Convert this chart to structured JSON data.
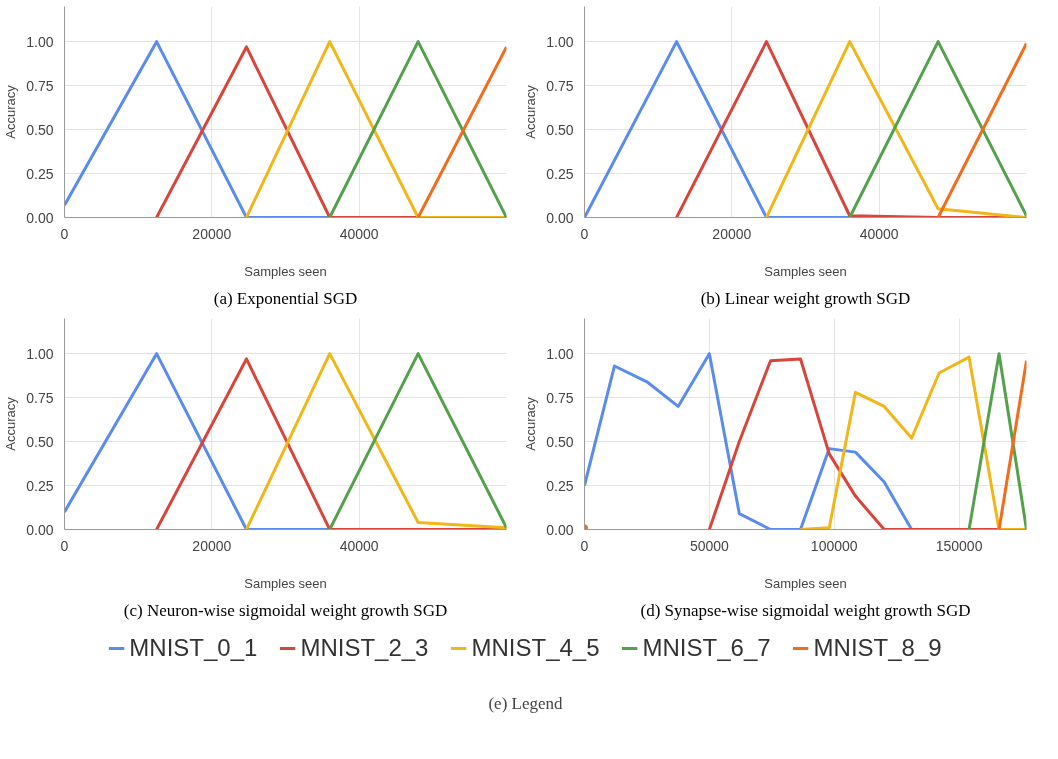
{
  "chart_data": [
    {
      "type": "line",
      "title": "(a) Exponential SGD",
      "xlabel": "Samples seen",
      "ylabel": "Accuracy",
      "x": [
        0,
        12500,
        24700,
        36000,
        48000,
        60000
      ],
      "xlim": [
        0,
        60000
      ],
      "ylim": [
        0,
        1.2
      ],
      "xticks": [
        0,
        20000,
        40000
      ],
      "yticks": [
        {
          "value": 0,
          "label": "0.00"
        },
        {
          "value": 0.25,
          "label": "0.25"
        },
        {
          "value": 0.5,
          "label": "0.50"
        },
        {
          "value": 0.75,
          "label": "0.75"
        },
        {
          "value": 1,
          "label": "1.00"
        }
      ],
      "grid": true,
      "legend": false,
      "series": [
        {
          "color": "#5a8cf0",
          "values": [
            0.07,
            1.0,
            0,
            0,
            0,
            0
          ]
        },
        {
          "color": "#d9453b",
          "values": [
            null,
            0,
            0.97,
            0,
            0,
            0
          ]
        },
        {
          "color": "#f2b619",
          "values": [
            null,
            null,
            0,
            1.0,
            0,
            0
          ]
        },
        {
          "color": "#53a14b",
          "values": [
            null,
            null,
            null,
            0,
            1.0,
            0
          ]
        },
        {
          "color": "#f36c1c",
          "values": [
            null,
            null,
            null,
            null,
            0,
            0.97
          ]
        }
      ]
    },
    {
      "type": "line",
      "title": "(b) Linear weight growth SGD",
      "xlabel": "Samples seen",
      "ylabel": "Accuracy",
      "x": [
        0,
        12500,
        24700,
        36000,
        48000,
        60000
      ],
      "xlim": [
        0,
        60000
      ],
      "ylim": [
        0,
        1.2
      ],
      "xticks": [
        0,
        20000,
        40000
      ],
      "yticks": [
        {
          "value": 0,
          "label": "0.00"
        },
        {
          "value": 0.25,
          "label": "0.25"
        },
        {
          "value": 0.5,
          "label": "0.50"
        },
        {
          "value": 0.75,
          "label": "0.75"
        },
        {
          "value": 1,
          "label": "1.00"
        }
      ],
      "grid": true,
      "legend": false,
      "series": [
        {
          "color": "#5a8cf0",
          "values": [
            0,
            1.0,
            0,
            0,
            0,
            0
          ]
        },
        {
          "color": "#d9453b",
          "values": [
            null,
            0,
            1.0,
            0.01,
            0,
            0
          ]
        },
        {
          "color": "#f2b619",
          "values": [
            null,
            null,
            0,
            1.0,
            0.05,
            0
          ]
        },
        {
          "color": "#53a14b",
          "values": [
            null,
            null,
            null,
            0,
            1.0,
            0.01
          ]
        },
        {
          "color": "#f36c1c",
          "values": [
            null,
            null,
            null,
            null,
            0,
            0.99
          ]
        }
      ]
    },
    {
      "type": "line",
      "title": "(c) Neuron-wise sigmoidal weight growth SGD",
      "xlabel": "Samples seen",
      "ylabel": "Accuracy",
      "x": [
        0,
        12500,
        24700,
        36000,
        48000,
        60000
      ],
      "xlim": [
        0,
        60000
      ],
      "ylim": [
        0,
        1.2
      ],
      "xticks": [
        0,
        20000,
        40000
      ],
      "yticks": [
        {
          "value": 0,
          "label": "0.00"
        },
        {
          "value": 0.25,
          "label": "0.25"
        },
        {
          "value": 0.5,
          "label": "0.50"
        },
        {
          "value": 0.75,
          "label": "0.75"
        },
        {
          "value": 1,
          "label": "1.00"
        }
      ],
      "grid": true,
      "legend": false,
      "series": [
        {
          "color": "#5a8cf0",
          "values": [
            0.1,
            1.0,
            0,
            0,
            0,
            0
          ]
        },
        {
          "color": "#d9453b",
          "values": [
            null,
            0,
            0.97,
            0,
            0,
            0
          ]
        },
        {
          "color": "#f2b619",
          "values": [
            null,
            null,
            0,
            1.0,
            0.04,
            0.01
          ]
        },
        {
          "color": "#53a14b",
          "values": [
            null,
            null,
            null,
            0,
            1.0,
            0.01
          ]
        }
      ]
    },
    {
      "type": "line",
      "title": "(d) Synapse-wise sigmoidal weight growth SGD",
      "xlabel": "Samples seen",
      "ylabel": "Accuracy",
      "x": [
        0,
        12000,
        25000,
        37500,
        50000,
        62000,
        74500,
        86500,
        98000,
        108500,
        120000,
        131000,
        142000,
        154000,
        166000,
        177000
      ],
      "xlim": [
        0,
        177000
      ],
      "ylim": [
        0,
        1.2
      ],
      "xticks": [
        0,
        50000,
        100000,
        150000
      ],
      "yticks": [
        {
          "value": 0,
          "label": "0.00"
        },
        {
          "value": 0.25,
          "label": "0.25"
        },
        {
          "value": 0.5,
          "label": "0.50"
        },
        {
          "value": 0.75,
          "label": "0.75"
        },
        {
          "value": 1,
          "label": "1.00"
        }
      ],
      "grid": true,
      "legend": "bottom",
      "annotations": [
        "(e) Legend"
      ],
      "series": [
        {
          "name": "MNIST_0_1",
          "color": "#5a8cf0",
          "values": [
            0.25,
            0.93,
            0.84,
            0.7,
            1.0,
            0.09,
            0,
            0,
            0.46,
            0.44,
            0.27,
            0,
            0,
            null,
            null,
            null
          ]
        },
        {
          "name": "MNIST_2_3",
          "color": "#d9453b",
          "values": [
            null,
            null,
            null,
            null,
            0,
            0.5,
            0.96,
            0.97,
            0.43,
            0.19,
            0,
            0,
            0,
            0,
            0,
            0
          ]
        },
        {
          "name": "MNIST_4_5",
          "color": "#f2b619",
          "values": [
            null,
            null,
            null,
            null,
            null,
            null,
            null,
            0,
            0.01,
            0.78,
            0.7,
            0.52,
            0.89,
            0.98,
            0,
            0
          ]
        },
        {
          "name": "MNIST_6_7",
          "color": "#53a14b",
          "values": [
            null,
            null,
            null,
            null,
            null,
            null,
            null,
            null,
            null,
            null,
            null,
            null,
            null,
            0,
            1.0,
            0
          ]
        },
        {
          "name": "MNIST_8_9",
          "color": "#f36c1c",
          "values": [
            0.01,
            null,
            null,
            null,
            null,
            null,
            null,
            null,
            null,
            null,
            null,
            null,
            null,
            null,
            0,
            0.96
          ]
        }
      ]
    }
  ]
}
